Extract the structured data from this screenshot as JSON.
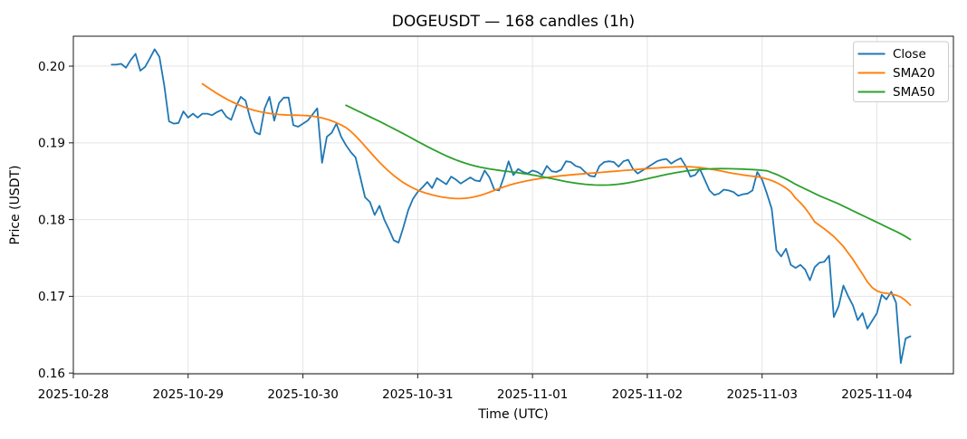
{
  "chart_data": {
    "type": "line",
    "title": "DOGEUSDT — 168 candles (1h)",
    "xlabel": "Time (UTC)",
    "ylabel": "Price (USDT)",
    "grid": true,
    "legend_position": "upper right",
    "x_unit": "hours since 2025-10-28 00:00 UTC",
    "xlim_hours": [
      0,
      184
    ],
    "ylim": [
      0.1599,
      0.2039
    ],
    "x_ticks": [
      {
        "hour": 0,
        "label": "2025-10-28"
      },
      {
        "hour": 24,
        "label": "2025-10-29"
      },
      {
        "hour": 48,
        "label": "2025-10-30"
      },
      {
        "hour": 72,
        "label": "2025-10-31"
      },
      {
        "hour": 96,
        "label": "2025-11-01"
      },
      {
        "hour": 120,
        "label": "2025-11-02"
      },
      {
        "hour": 144,
        "label": "2025-11-03"
      },
      {
        "hour": 168,
        "label": "2025-11-04"
      }
    ],
    "y_ticks": [
      {
        "value": 0.16,
        "label": "0.16"
      },
      {
        "value": 0.17,
        "label": "0.17"
      },
      {
        "value": 0.18,
        "label": "0.18"
      },
      {
        "value": 0.19,
        "label": "0.19"
      },
      {
        "value": 0.2,
        "label": "0.20"
      }
    ],
    "series": [
      {
        "name": "Close",
        "color": "#1f77b4",
        "start_hour": 8,
        "step_hours": 1,
        "values": [
          0.2002,
          0.2002,
          0.2003,
          0.1998,
          0.2008,
          0.2016,
          0.1994,
          0.1999,
          0.201,
          0.2022,
          0.2012,
          0.1975,
          0.1928,
          0.1925,
          0.1926,
          0.1941,
          0.1933,
          0.1938,
          0.1933,
          0.1938,
          0.1938,
          0.1936,
          0.194,
          0.1943,
          0.1934,
          0.193,
          0.1947,
          0.196,
          0.1955,
          0.1931,
          0.1914,
          0.1911,
          0.1945,
          0.196,
          0.1929,
          0.1952,
          0.1959,
          0.1959,
          0.1923,
          0.1921,
          0.1925,
          0.1929,
          0.1937,
          0.1945,
          0.1874,
          0.1908,
          0.1913,
          0.1925,
          0.1908,
          0.1897,
          0.1888,
          0.1881,
          0.1855,
          0.1829,
          0.1823,
          0.1806,
          0.1818,
          0.18,
          0.1787,
          0.1773,
          0.177,
          0.179,
          0.1812,
          0.1827,
          0.1836,
          0.1842,
          0.1849,
          0.1841,
          0.1854,
          0.185,
          0.1846,
          0.1856,
          0.1852,
          0.1847,
          0.1851,
          0.1855,
          0.1851,
          0.185,
          0.1864,
          0.1855,
          0.1839,
          0.1838,
          0.1855,
          0.1876,
          0.1858,
          0.1866,
          0.1862,
          0.186,
          0.1864,
          0.1862,
          0.1858,
          0.187,
          0.1863,
          0.1862,
          0.1865,
          0.1876,
          0.1875,
          0.187,
          0.1868,
          0.1862,
          0.1857,
          0.1856,
          0.187,
          0.1875,
          0.1876,
          0.1875,
          0.1869,
          0.1876,
          0.1878,
          0.1866,
          0.186,
          0.1864,
          0.1868,
          0.1872,
          0.1876,
          0.1878,
          0.1879,
          0.1873,
          0.1877,
          0.188,
          0.187,
          0.1856,
          0.1858,
          0.1866,
          0.1852,
          0.1838,
          0.1832,
          0.1834,
          0.1839,
          0.1838,
          0.1836,
          0.1831,
          0.1833,
          0.1834,
          0.1838,
          0.1862,
          0.1852,
          0.1834,
          0.1814,
          0.176,
          0.1752,
          0.1762,
          0.1741,
          0.1737,
          0.1741,
          0.1735,
          0.1721,
          0.1738,
          0.1744,
          0.1745,
          0.1753,
          0.1673,
          0.1687,
          0.1714,
          0.17,
          0.1688,
          0.1669,
          0.1678,
          0.1658,
          0.1668,
          0.1678,
          0.1702,
          0.1696,
          0.1706,
          0.1692,
          0.1613,
          0.1645,
          0.1648
        ]
      },
      {
        "name": "SMA20",
        "color": "#ff7f0e",
        "start_hour": 27,
        "step_hours": 1,
        "values": [
          0.1977,
          0.19726,
          0.19684,
          0.19645,
          0.19608,
          0.19573,
          0.19541,
          0.19511,
          0.19484,
          0.1946,
          0.19439,
          0.19421,
          0.19406,
          0.19394,
          0.19384,
          0.19376,
          0.1937,
          0.19366,
          0.19363,
          0.19361,
          0.1936,
          0.19358,
          0.19354,
          0.19348,
          0.19338,
          0.19325,
          0.19308,
          0.19287,
          0.19262,
          0.19233,
          0.192,
          0.1915,
          0.1909,
          0.19025,
          0.18955,
          0.18885,
          0.18815,
          0.18748,
          0.18685,
          0.18627,
          0.18574,
          0.18526,
          0.18483,
          0.18445,
          0.18412,
          0.18384,
          0.1836,
          0.1834,
          0.18323,
          0.18308,
          0.18295,
          0.18285,
          0.18278,
          0.18274,
          0.18274,
          0.18278,
          0.18286,
          0.18298,
          0.18314,
          0.18334,
          0.18356,
          0.1838,
          0.18404,
          0.18426,
          0.18446,
          0.18464,
          0.1848,
          0.18494,
          0.18507,
          0.18519,
          0.1853,
          0.1854,
          0.18549,
          0.18557,
          0.18564,
          0.18571,
          0.18577,
          0.18583,
          0.18589,
          0.18594,
          0.18599,
          0.18604,
          0.18609,
          0.18614,
          0.18619,
          0.18624,
          0.18629,
          0.18634,
          0.18639,
          0.18644,
          0.18649,
          0.18654,
          0.18659,
          0.18664,
          0.18669,
          0.18673,
          0.18677,
          0.18681,
          0.18684,
          0.18687,
          0.18689,
          0.1869,
          0.18688,
          0.18684,
          0.18678,
          0.1867,
          0.1866,
          0.1865,
          0.18638,
          0.18626,
          0.18614,
          0.18602,
          0.18592,
          0.18582,
          0.18573,
          0.18565,
          0.18558,
          0.18547,
          0.1853,
          0.18508,
          0.18482,
          0.1845,
          0.1841,
          0.1836,
          0.1828,
          0.1822,
          0.1815,
          0.18065,
          0.1797,
          0.17925,
          0.1788,
          0.1783,
          0.1778,
          0.17715,
          0.1765,
          0.17565,
          0.1748,
          0.17385,
          0.1729,
          0.1719,
          0.17115,
          0.1707,
          0.17048,
          0.1704,
          0.1703,
          0.17015,
          0.1699,
          0.16945,
          0.16885
        ]
      },
      {
        "name": "SMA50",
        "color": "#2ca02c",
        "start_hour": 57,
        "step_hours": 1,
        "values": [
          0.1949,
          0.1946,
          0.1943,
          0.194,
          0.1937,
          0.1934,
          0.1931,
          0.1928,
          0.19248,
          0.19216,
          0.19184,
          0.19152,
          0.1912,
          0.19086,
          0.19052,
          0.19018,
          0.18985,
          0.18952,
          0.1892,
          0.18889,
          0.18859,
          0.1883,
          0.18803,
          0.18778,
          0.18755,
          0.18734,
          0.18715,
          0.18698,
          0.18684,
          0.18672,
          0.18661,
          0.18651,
          0.18642,
          0.18634,
          0.18626,
          0.18618,
          0.1861,
          0.18601,
          0.18592,
          0.18582,
          0.18571,
          0.18559,
          0.18547,
          0.18534,
          0.18521,
          0.18508,
          0.18496,
          0.18485,
          0.18475,
          0.18467,
          0.1846,
          0.18455,
          0.18451,
          0.18449,
          0.18449,
          0.18451,
          0.18455,
          0.18461,
          0.18469,
          0.18479,
          0.18491,
          0.18504,
          0.18518,
          0.18532,
          0.18546,
          0.1856,
          0.18574,
          0.18587,
          0.18599,
          0.18611,
          0.18622,
          0.18632,
          0.18641,
          0.18648,
          0.18654,
          0.18658,
          0.18661,
          0.18663,
          0.18664,
          0.18664,
          0.18663,
          0.18662,
          0.1866,
          0.18658,
          0.18655,
          0.18652,
          0.18648,
          0.18643,
          0.18636,
          0.18612,
          0.1859,
          0.1856,
          0.1853,
          0.18495,
          0.1846,
          0.1843,
          0.184,
          0.1837,
          0.1834,
          0.1831,
          0.18283,
          0.18257,
          0.18232,
          0.18205,
          0.18175,
          0.18145,
          0.18115,
          0.18085,
          0.18055,
          0.18025,
          0.17995,
          0.17965,
          0.17935,
          0.17905,
          0.17875,
          0.17845,
          0.17815,
          0.1778,
          0.1774
        ]
      }
    ]
  }
}
